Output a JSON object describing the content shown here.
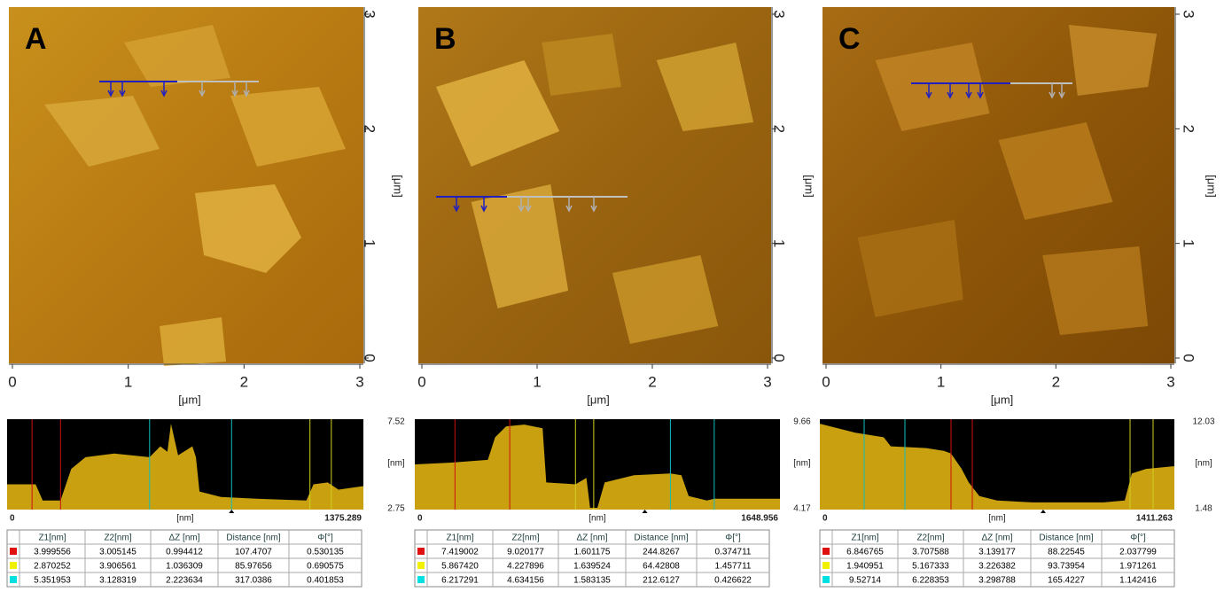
{
  "panels": [
    {
      "label": "A",
      "x_ticks": [
        "0",
        "1",
        "2",
        "3"
      ],
      "y_ticks": [
        "0",
        "1",
        "2",
        "3"
      ],
      "x_axis_label": "[μm]",
      "y_axis_label": "[μm]",
      "profile": {
        "y_max": "7.52",
        "y_unit": "[nm]",
        "y_min": "2.75",
        "x_start": "0",
        "x_unit": "[nm]",
        "x_end": "1375.289"
      },
      "table": {
        "header": [
          "Z1[nm]",
          "Z2[nm]",
          "ΔZ [nm]",
          "Distance [nm]",
          "Φ[°]"
        ],
        "rows": [
          [
            "3.999556",
            "3.005145",
            "0.994412",
            "107.4707",
            "0.530135"
          ],
          [
            "2.870252",
            "3.906561",
            "1.036309",
            "85.97656",
            "0.690575"
          ],
          [
            "5.351953",
            "3.128319",
            "2.223634",
            "317.0386",
            "0.401853"
          ]
        ]
      }
    },
    {
      "label": "B",
      "x_ticks": [
        "0",
        "1",
        "2",
        "3"
      ],
      "y_ticks": [
        "0",
        "1",
        "2",
        "3"
      ],
      "x_axis_label": "[μm]",
      "y_axis_label": "[μm]",
      "profile": {
        "y_max": "9.66",
        "y_unit": "[nm]",
        "y_min": "4.17",
        "x_start": "0",
        "x_unit": "[nm]",
        "x_end": "1648.956"
      },
      "table": {
        "header": [
          "Z1[nm]",
          "Z2[nm]",
          "ΔZ [nm]",
          "Distance [nm]",
          "Φ[°]"
        ],
        "rows": [
          [
            "7.419002",
            "9.020177",
            "1.601175",
            "244.8267",
            "0.374711"
          ],
          [
            "5.867420",
            "4.227896",
            "1.639524",
            "64.42808",
            "1.457711"
          ],
          [
            "6.217291",
            "4.634156",
            "1.583135",
            "212.6127",
            "0.426622"
          ]
        ]
      }
    },
    {
      "label": "C",
      "x_ticks": [
        "0",
        "1",
        "2",
        "3"
      ],
      "y_ticks": [
        "0",
        "1",
        "2",
        "3"
      ],
      "x_axis_label": "[μm]",
      "y_axis_label": "[μm]",
      "profile": {
        "y_max": "12.03",
        "y_unit": "[nm]",
        "y_min": "1.48",
        "x_start": "0",
        "x_unit": "[nm]",
        "x_end": "1411.263"
      },
      "table": {
        "header": [
          "Z1[nm]",
          "Z2[nm]",
          "ΔZ [nm]",
          "Distance [nm]",
          "Φ[°]"
        ],
        "rows": [
          [
            "6.846765",
            "3.707588",
            "3.139177",
            "88.22545",
            "2.037799"
          ],
          [
            "1.940951",
            "5.167333",
            "3.226382",
            "93.73954",
            "1.971261"
          ],
          [
            "9.52714",
            "6.228353",
            "3.298788",
            "165.4227",
            "1.142416"
          ]
        ]
      }
    }
  ]
}
